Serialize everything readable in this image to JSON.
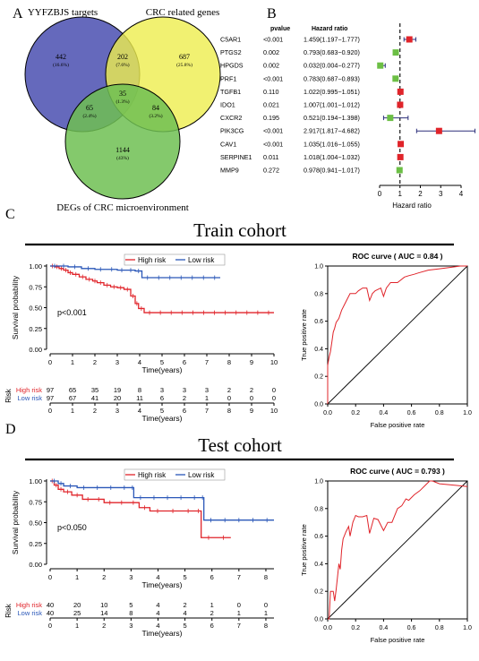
{
  "panels": {
    "A": "A",
    "B": "B",
    "C": "C",
    "D": "D"
  },
  "venn": {
    "labels": {
      "top_left": "YYFZBJS targets",
      "top_right": "CRC related genes",
      "bottom": "DEGs of CRC microenvironment"
    },
    "regions": [
      {
        "id": "a_only",
        "count": "442",
        "pct": "(16.6%)"
      },
      {
        "id": "ab",
        "count": "202",
        "pct": "(7.6%)"
      },
      {
        "id": "b_only",
        "count": "687",
        "pct": "(25.8%)"
      },
      {
        "id": "abc",
        "count": "35",
        "pct": "(1.3%)"
      },
      {
        "id": "ac",
        "count": "65",
        "pct": "(2.4%)"
      },
      {
        "id": "bc",
        "count": "84",
        "pct": "(3.2%)"
      },
      {
        "id": "c_only",
        "count": "1144",
        "pct": "(43%)"
      }
    ],
    "colors": {
      "a": "#4a4fb0",
      "b": "#eeee4e",
      "c": "#6fbf52"
    }
  },
  "forest": {
    "header_p": "pvalue",
    "header_hr": "Hazard ratio",
    "xlabel": "Hazard ratio",
    "rows": [
      {
        "gene": "C5AR1",
        "p": "<0.001",
        "hr_text": "1.459(1.197−1.777)",
        "hr": 1.459,
        "lo": 1.197,
        "hi": 1.777,
        "color": "#e0242a"
      },
      {
        "gene": "PTGS2",
        "p": "0.002",
        "hr_text": "0.793(0.683−0.920)",
        "hr": 0.793,
        "lo": 0.683,
        "hi": 0.92,
        "color": "#6cbf45"
      },
      {
        "gene": "HPGDS",
        "p": "0.002",
        "hr_text": "0.032(0.004−0.277)",
        "hr": 0.032,
        "lo": 0.004,
        "hi": 0.277,
        "color": "#6cbf45"
      },
      {
        "gene": "PRF1",
        "p": "<0.001",
        "hr_text": "0.783(0.687−0.893)",
        "hr": 0.783,
        "lo": 0.687,
        "hi": 0.893,
        "color": "#6cbf45"
      },
      {
        "gene": "TGFB1",
        "p": "0.110",
        "hr_text": "1.022(0.995−1.051)",
        "hr": 1.022,
        "lo": 0.995,
        "hi": 1.051,
        "color": "#e0242a"
      },
      {
        "gene": "IDO1",
        "p": "0.021",
        "hr_text": "1.007(1.001−1.012)",
        "hr": 1.007,
        "lo": 1.001,
        "hi": 1.012,
        "color": "#e0242a"
      },
      {
        "gene": "CXCR2",
        "p": "0.195",
        "hr_text": "0.521(0.194−1.398)",
        "hr": 0.521,
        "lo": 0.194,
        "hi": 1.398,
        "color": "#6cbf45"
      },
      {
        "gene": "PIK3CG",
        "p": "<0.001",
        "hr_text": "2.917(1.817−4.682)",
        "hr": 2.917,
        "lo": 1.817,
        "hi": 4.682,
        "color": "#e0242a"
      },
      {
        "gene": "CAV1",
        "p": "<0.001",
        "hr_text": "1.035(1.016−1.055)",
        "hr": 1.035,
        "lo": 1.016,
        "hi": 1.055,
        "color": "#e0242a"
      },
      {
        "gene": "SERPINE1",
        "p": "0.011",
        "hr_text": "1.018(1.004−1.032)",
        "hr": 1.018,
        "lo": 1.004,
        "hi": 1.032,
        "color": "#e0242a"
      },
      {
        "gene": "MMP9",
        "p": "0.272",
        "hr_text": "0.978(0.941−1.017)",
        "hr": 0.978,
        "lo": 0.941,
        "hi": 1.017,
        "color": "#6cbf45"
      }
    ],
    "xticks": [
      0,
      1,
      2,
      3,
      4
    ],
    "xlim": [
      0,
      4.8
    ],
    "ref_line": 1
  },
  "cohorts": [
    {
      "title": "Train cohort",
      "legend": {
        "high": "High risk",
        "low": "Low risk"
      },
      "km": {
        "ylabel": "Survival probability",
        "xlabel": "Time(years)",
        "pvalue": "p<0.001",
        "xlim": [
          0,
          10
        ],
        "xticks": [
          0,
          1,
          2,
          3,
          4,
          5,
          6,
          7,
          8,
          9,
          10
        ],
        "ylim": [
          0,
          1
        ],
        "yticks": [
          "0.00",
          "0.25",
          "0.50",
          "0.75",
          "1.00"
        ],
        "high": {
          "color": "#e0242a",
          "steps": [
            [
              0,
              1
            ],
            [
              0.2,
              0.99
            ],
            [
              0.4,
              0.97
            ],
            [
              0.6,
              0.95
            ],
            [
              0.8,
              0.92
            ],
            [
              1.0,
              0.9
            ],
            [
              1.3,
              0.87
            ],
            [
              1.6,
              0.84
            ],
            [
              1.9,
              0.82
            ],
            [
              2.1,
              0.8
            ],
            [
              2.4,
              0.77
            ],
            [
              2.7,
              0.75
            ],
            [
              3.0,
              0.74
            ],
            [
              3.3,
              0.72
            ],
            [
              3.6,
              0.64
            ],
            [
              3.8,
              0.55
            ],
            [
              3.95,
              0.49
            ],
            [
              4.2,
              0.44
            ],
            [
              10,
              0.44
            ]
          ]
        },
        "low": {
          "color": "#2a57b8",
          "steps": [
            [
              0,
              1
            ],
            [
              0.8,
              0.99
            ],
            [
              1.4,
              0.97
            ],
            [
              2.0,
              0.96
            ],
            [
              3.0,
              0.95
            ],
            [
              3.8,
              0.94
            ],
            [
              4.1,
              0.86
            ],
            [
              7.6,
              0.86
            ]
          ]
        }
      },
      "risk_table": {
        "label": "Risk",
        "xlabel": "Time(years)",
        "rows": [
          {
            "name": "High risk",
            "color": "#e0242a",
            "values": [
              "97",
              "65",
              "35",
              "19",
              "8",
              "3",
              "3",
              "3",
              "2",
              "2",
              "0"
            ]
          },
          {
            "name": "Low risk",
            "color": "#2a57b8",
            "values": [
              "97",
              "67",
              "41",
              "20",
              "11",
              "6",
              "2",
              "1",
              "0",
              "0",
              "0"
            ]
          }
        ]
      },
      "roc": {
        "title": "ROC curve ( AUC = 0.84 )",
        "auc": 0.84,
        "xlabel": "False positive rate",
        "ylabel": "True positive rate",
        "ticks": [
          "0.0",
          "0.2",
          "0.4",
          "0.6",
          "0.8",
          "1.0"
        ],
        "points": [
          [
            0,
            0
          ],
          [
            0,
            0.28
          ],
          [
            0.01,
            0.34
          ],
          [
            0.02,
            0.38
          ],
          [
            0.03,
            0.45
          ],
          [
            0.04,
            0.52
          ],
          [
            0.05,
            0.55
          ],
          [
            0.06,
            0.59
          ],
          [
            0.08,
            0.62
          ],
          [
            0.1,
            0.68
          ],
          [
            0.12,
            0.72
          ],
          [
            0.14,
            0.76
          ],
          [
            0.16,
            0.8
          ],
          [
            0.2,
            0.8
          ],
          [
            0.22,
            0.82
          ],
          [
            0.25,
            0.84
          ],
          [
            0.28,
            0.84
          ],
          [
            0.3,
            0.75
          ],
          [
            0.32,
            0.8
          ],
          [
            0.34,
            0.82
          ],
          [
            0.38,
            0.84
          ],
          [
            0.4,
            0.78
          ],
          [
            0.42,
            0.84
          ],
          [
            0.45,
            0.88
          ],
          [
            0.5,
            0.88
          ],
          [
            0.55,
            0.92
          ],
          [
            0.58,
            0.93
          ],
          [
            0.62,
            0.94
          ],
          [
            0.65,
            0.95
          ],
          [
            0.72,
            0.97
          ],
          [
            0.8,
            0.98
          ],
          [
            0.88,
            0.99
          ],
          [
            0.95,
            1.0
          ],
          [
            1,
            1
          ]
        ]
      }
    },
    {
      "title": "Test cohort",
      "legend": {
        "high": "High risk",
        "low": "Low risk"
      },
      "km": {
        "ylabel": "Survival probability",
        "xlabel": "Time(years)",
        "pvalue": "p<0.050",
        "xlim": [
          0,
          8.3
        ],
        "xticks": [
          0,
          1,
          2,
          3,
          4,
          5,
          6,
          7,
          8
        ],
        "ylim": [
          0,
          1
        ],
        "yticks": [
          "0.00",
          "0.25",
          "0.50",
          "0.75",
          "1.00"
        ],
        "high": {
          "color": "#e0242a",
          "steps": [
            [
              0,
              1
            ],
            [
              0.15,
              0.95
            ],
            [
              0.3,
              0.9
            ],
            [
              0.5,
              0.87
            ],
            [
              0.8,
              0.83
            ],
            [
              1.2,
              0.78
            ],
            [
              2.0,
              0.74
            ],
            [
              3.3,
              0.68
            ],
            [
              3.7,
              0.64
            ],
            [
              5.4,
              0.64
            ],
            [
              5.6,
              0.32
            ],
            [
              6.7,
              0.32
            ]
          ]
        },
        "low": {
          "color": "#2a57b8",
          "steps": [
            [
              0,
              1
            ],
            [
              0.3,
              0.97
            ],
            [
              0.5,
              0.94
            ],
            [
              1.0,
              0.92
            ],
            [
              3.0,
              0.92
            ],
            [
              3.1,
              0.8
            ],
            [
              5.6,
              0.8
            ],
            [
              5.7,
              0.53
            ],
            [
              8.3,
              0.53
            ]
          ]
        }
      },
      "risk_table": {
        "label": "Risk",
        "xlabel": "Time(years)",
        "rows": [
          {
            "name": "High risk",
            "color": "#e0242a",
            "values": [
              "40",
              "20",
              "10",
              "5",
              "4",
              "2",
              "1",
              "0",
              "0"
            ]
          },
          {
            "name": "Low risk",
            "color": "#2a57b8",
            "values": [
              "40",
              "25",
              "14",
              "8",
              "4",
              "4",
              "2",
              "1",
              "1"
            ]
          }
        ]
      },
      "roc": {
        "title": "ROC curve ( AUC = 0.793 )",
        "auc": 0.793,
        "xlabel": "False positive rate",
        "ylabel": "True positive rate",
        "ticks": [
          "0.0",
          "0.2",
          "0.4",
          "0.6",
          "0.8",
          "1.0"
        ],
        "points": [
          [
            0,
            0
          ],
          [
            0.01,
            0.0
          ],
          [
            0.02,
            0.2
          ],
          [
            0.04,
            0.2
          ],
          [
            0.05,
            0.13
          ],
          [
            0.06,
            0.21
          ],
          [
            0.07,
            0.3
          ],
          [
            0.08,
            0.4
          ],
          [
            0.09,
            0.36
          ],
          [
            0.1,
            0.5
          ],
          [
            0.11,
            0.58
          ],
          [
            0.13,
            0.63
          ],
          [
            0.15,
            0.67
          ],
          [
            0.16,
            0.6
          ],
          [
            0.18,
            0.7
          ],
          [
            0.2,
            0.75
          ],
          [
            0.22,
            0.74
          ],
          [
            0.25,
            0.74
          ],
          [
            0.28,
            0.75
          ],
          [
            0.3,
            0.62
          ],
          [
            0.33,
            0.73
          ],
          [
            0.36,
            0.72
          ],
          [
            0.4,
            0.64
          ],
          [
            0.43,
            0.7
          ],
          [
            0.46,
            0.7
          ],
          [
            0.5,
            0.8
          ],
          [
            0.53,
            0.82
          ],
          [
            0.56,
            0.87
          ],
          [
            0.58,
            0.86
          ],
          [
            0.62,
            0.9
          ],
          [
            0.66,
            0.93
          ],
          [
            0.7,
            0.97
          ],
          [
            0.73,
            1.0
          ],
          [
            0.75,
            1.0
          ],
          [
            0.8,
            0.98
          ],
          [
            0.9,
            0.97
          ],
          [
            1.0,
            0.96
          ]
        ]
      }
    }
  ],
  "chart_data": [
    {
      "type": "venn",
      "sets": [
        "YYFZBJS targets",
        "CRC related genes",
        "DEGs of CRC microenvironment"
      ],
      "regions": {
        "A_only": 442,
        "AB": 202,
        "B_only": 687,
        "ABC": 35,
        "AC": 65,
        "BC": 84,
        "C_only": 1144
      }
    },
    {
      "type": "forest",
      "xlabel": "Hazard ratio",
      "categories": [
        "C5AR1",
        "PTGS2",
        "HPGDS",
        "PRF1",
        "TGFB1",
        "IDO1",
        "CXCR2",
        "PIK3CG",
        "CAV1",
        "SERPINE1",
        "MMP9"
      ],
      "hr": [
        1.459,
        0.793,
        0.032,
        0.783,
        1.022,
        1.007,
        0.521,
        2.917,
        1.035,
        1.018,
        0.978
      ],
      "lower": [
        1.197,
        0.683,
        0.004,
        0.687,
        0.995,
        1.001,
        0.194,
        1.817,
        1.016,
        1.004,
        0.941
      ],
      "upper": [
        1.777,
        0.92,
        0.277,
        0.893,
        1.051,
        1.012,
        1.398,
        4.682,
        1.055,
        1.032,
        1.017
      ],
      "pvalue": [
        "<0.001",
        "0.002",
        "0.002",
        "<0.001",
        "0.110",
        "0.021",
        "0.195",
        "<0.001",
        "<0.001",
        "0.011",
        "0.272"
      ]
    },
    {
      "type": "line",
      "title": "Train cohort",
      "xlabel": "Time(years)",
      "ylabel": "Survival probability",
      "series": [
        {
          "name": "High risk"
        },
        {
          "name": "Low risk"
        }
      ]
    },
    {
      "type": "line",
      "title": "ROC curve ( AUC = 0.84 )",
      "xlabel": "False positive rate",
      "ylabel": "True positive rate"
    },
    {
      "type": "line",
      "title": "Test cohort",
      "xlabel": "Time(years)",
      "ylabel": "Survival probability",
      "series": [
        {
          "name": "High risk"
        },
        {
          "name": "Low risk"
        }
      ]
    },
    {
      "type": "line",
      "title": "ROC curve ( AUC = 0.793 )",
      "xlabel": "False positive rate",
      "ylabel": "True positive rate"
    }
  ]
}
